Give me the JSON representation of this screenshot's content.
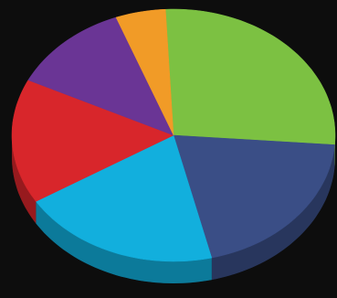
{
  "chart_data": {
    "type": "pie",
    "values": [
      27,
      20,
      20,
      16,
      12,
      5
    ],
    "colors": [
      "#7cc142",
      "#3a4e86",
      "#12afdd",
      "#d8262b",
      "#6a3595",
      "#f19b27"
    ]
  }
}
